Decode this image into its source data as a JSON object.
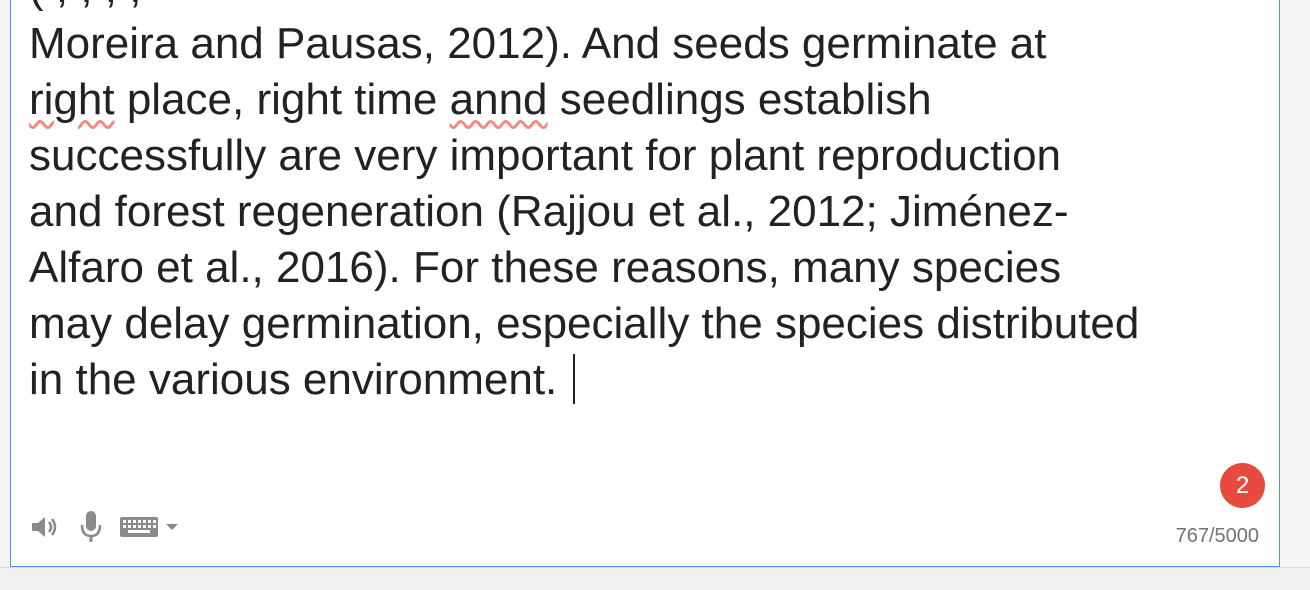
{
  "source_text": {
    "lines": [
      "Moreira and Pausas, 2012). And seeds germinate at",
      "place, right time",
      "seedlings establish",
      "successfully are very important for plant reproduction",
      "and forest regeneration (Rajjou et al., 2012; Jiménez-",
      "Alfaro et al., 2016). For these reasons, many species",
      "may delay germination, especially the species distributed",
      "in the various environment."
    ],
    "misspelled_words": [
      "right",
      "annd"
    ],
    "cutoff_line": "(                   ,       ,                          ,        ,"
  },
  "badge": {
    "count": "2",
    "color": "#e84a3f"
  },
  "toolbar": {
    "icons": [
      "speaker-icon",
      "microphone-icon",
      "keyboard-icon",
      "dropdown-caret-icon"
    ]
  },
  "char_counter": {
    "text": "767/5000"
  },
  "colors": {
    "focus_border": "#4d90fe",
    "spellcheck_underline": "#f28b82",
    "text": "#222222"
  }
}
